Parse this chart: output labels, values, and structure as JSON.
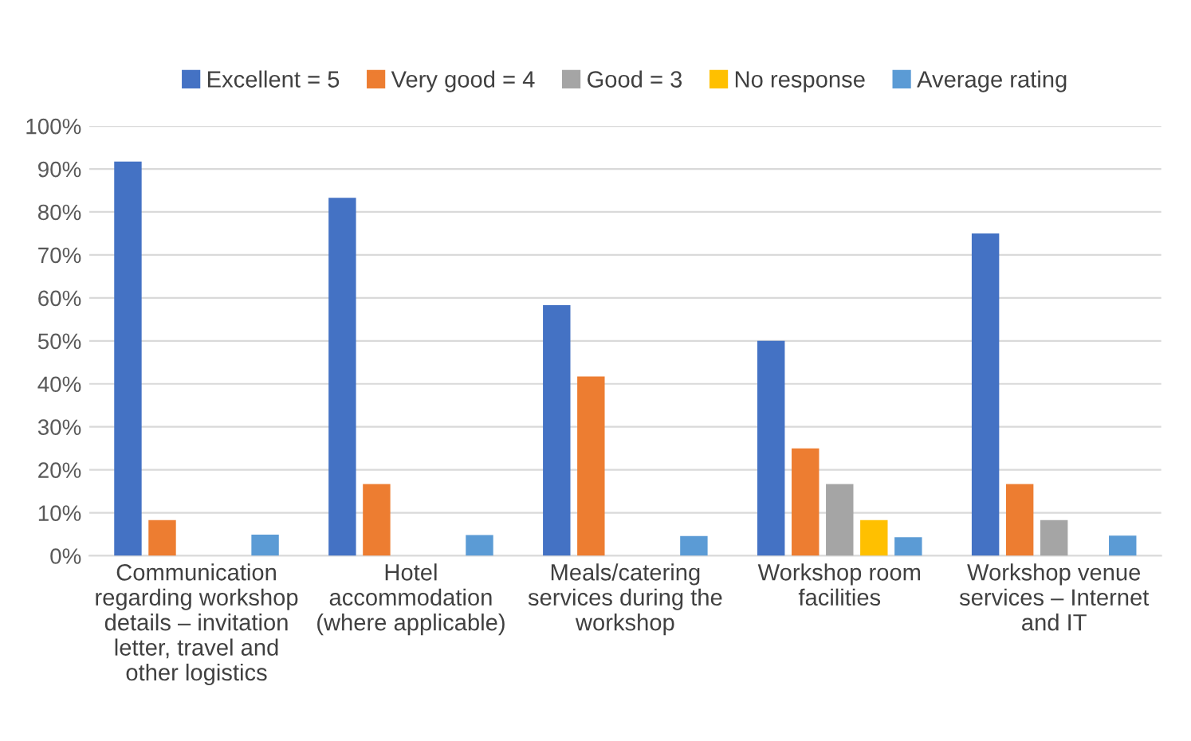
{
  "chart_data": {
    "type": "bar",
    "categories": [
      "Communication\nregarding workshop\ndetails – invitation\nletter, travel and\nother logistics",
      "Hotel\naccommodation\n(where applicable)",
      "Meals/catering\nservices during the\nworkshop",
      "Workshop room\nfacilities",
      "Workshop venue\nservices – Internet\nand IT"
    ],
    "series": [
      {
        "name": "Excellent = 5",
        "color": "#4472c4",
        "values": [
          91.7,
          83.3,
          58.3,
          50,
          75
        ]
      },
      {
        "name": "Very good = 4",
        "color": "#ed7d31",
        "values": [
          8.3,
          16.7,
          41.7,
          25,
          16.7
        ]
      },
      {
        "name": "Good = 3",
        "color": "#a5a5a5",
        "values": [
          0,
          0,
          0,
          16.7,
          8.3
        ]
      },
      {
        "name": "No response",
        "color": "#ffc000",
        "values": [
          0,
          0,
          0,
          8.3,
          0
        ]
      },
      {
        "name": "Average rating",
        "color": "#5b9bd5",
        "values": [
          4.9,
          4.8,
          4.6,
          4.3,
          4.7
        ]
      }
    ],
    "ylim": [
      0,
      100
    ],
    "yticks": [
      {
        "value": 0,
        "label": "0%"
      },
      {
        "value": 10,
        "label": "10%"
      },
      {
        "value": 20,
        "label": "20%"
      },
      {
        "value": 30,
        "label": "30%"
      },
      {
        "value": 40,
        "label": "40%"
      },
      {
        "value": 50,
        "label": "50%"
      },
      {
        "value": 60,
        "label": "60%"
      },
      {
        "value": 70,
        "label": "70%"
      },
      {
        "value": 80,
        "label": "80%"
      },
      {
        "value": 90,
        "label": "90%"
      },
      {
        "value": 100,
        "label": "100%"
      }
    ],
    "grid": "y",
    "legend": "top"
  }
}
